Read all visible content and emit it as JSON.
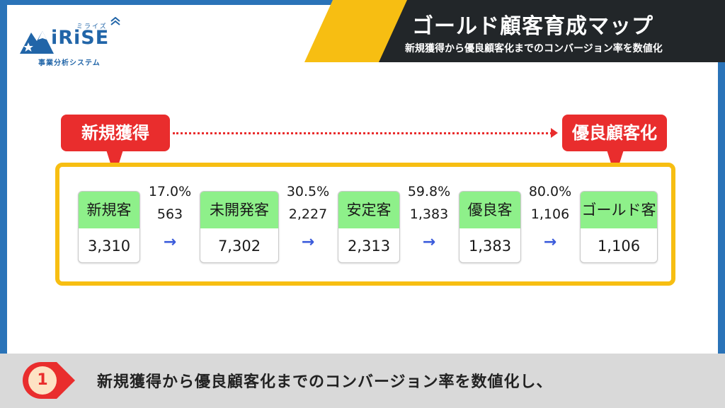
{
  "header": {
    "title": "ゴールド顧客育成マップ",
    "subtitle": "新規獲得から優良顧客化までのコンバージョン率を数値化"
  },
  "logo": {
    "brand": "iRiSE",
    "ruby": "ミライズ",
    "caption": "事業分析システム"
  },
  "callouts": {
    "start": "新規獲得",
    "end": "優良顧客化"
  },
  "stages": [
    {
      "label": "新規客",
      "value": "3,310"
    },
    {
      "label": "未開発客",
      "value": "7,302"
    },
    {
      "label": "安定客",
      "value": "2,313"
    },
    {
      "label": "優良客",
      "value": "1,383"
    },
    {
      "label": "ゴールド客",
      "value": "1,106"
    }
  ],
  "conversions": [
    {
      "rate": "17.0%",
      "count": "563",
      "arrow": "→"
    },
    {
      "rate": "30.5%",
      "count": "2,227",
      "arrow": "→"
    },
    {
      "rate": "59.8%",
      "count": "1,383",
      "arrow": "→"
    },
    {
      "rate": "80.0%",
      "count": "1,106",
      "arrow": "→"
    }
  ],
  "footer": {
    "step": "1",
    "text": "新規獲得から優良顧客化までのコンバージョン率を数値化し、"
  },
  "colors": {
    "brand_blue": "#2a73b8",
    "accent_yellow": "#f7be12",
    "callout_red": "#e92d2d",
    "stage_green": "#8ef08a",
    "arrow_blue": "#3b5bdb"
  }
}
